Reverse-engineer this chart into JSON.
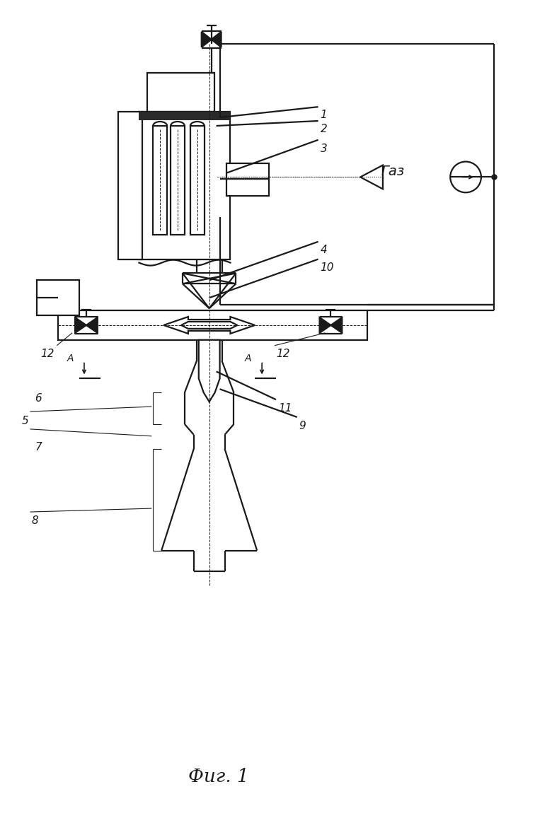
{
  "bg_color": "#ffffff",
  "line_color": "#1a1a1a",
  "fig_caption": "Фиг. 1",
  "gaz_label": "Газ"
}
